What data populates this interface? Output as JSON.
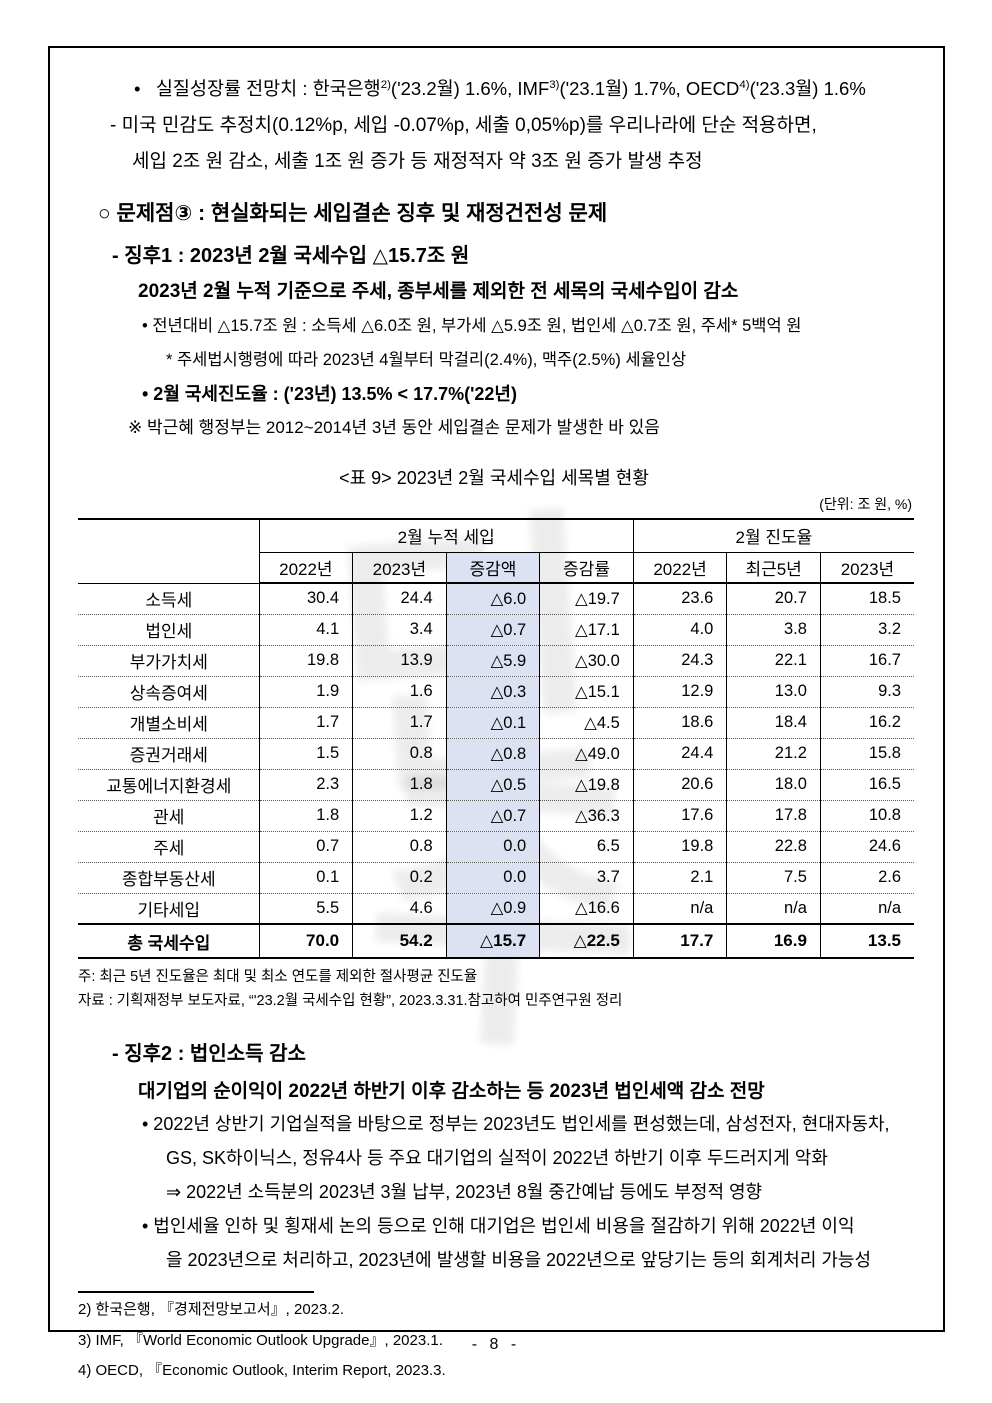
{
  "decor": {
    "watermark_glyphs": [
      "민",
      "주"
    ]
  },
  "intro": {
    "bullet1": {
      "marker": "•",
      "seg1": "실질성장률 전망치 : 한국은행",
      "sup1": "2)",
      "seg2": "('23.2월) 1.6%, IMF",
      "sup2": "3)",
      "seg3": "('23.1월) 1.7%, OECD",
      "sup3": "4)",
      "seg4": "('23.3월) 1.6%"
    },
    "dash1": "- 미국 민감도 추정치(0.12%p, 세입 -0.07%p, 세출 0,05%p)를 우리나라에 단순 적용하면,",
    "dash1_cont": "세입 2조 원 감소, 세출 1조 원 증가 등 재정적자 약 3조 원 증가 발생 추정"
  },
  "problem3": {
    "heading": "○ 문제점③ : 현실화되는 세입결손 징후 및 재정건전성 문제",
    "sign1": {
      "title": "- 징후1 : 2023년 2월 국세수입 △15.7조 원",
      "summary": "2023년 2월 누적 기준으로 주세, 종부세를 제외한 전 세목의 국세수입이 감소",
      "bullet_yoy": "• 전년대비 △15.7조 원 : 소득세 △6.0조 원, 부가세 △5.9조 원, 법인세 △0.7조 원, 주세* 5백억 원",
      "liquor_note": "* 주세법시행령에 따라 2023년 4월부터 막걸리(2.4%), 맥주(2.5%) 세율인상",
      "bullet_progress": "• 2월 국세진도율 : ('23년) 13.5% < 17.7%('22년)",
      "remark": "※ 박근혜 행정부는 2012~2014년 3년 동안 세입결손 문제가 발생한 바 있음"
    },
    "sign2": {
      "title": "- 징후2 : 법인소득 감소",
      "summary": "대기업의 순이익이 2022년 하반기 이후 감소하는 등 2023년 법인세액 감소 전망",
      "bullet1_line1": "• 2022년 상반기 기업실적을 바탕으로 정부는 2023년도 법인세를 편성했는데, 삼성전자, 현대자동차,",
      "bullet1_line2": "GS, SK하이닉스, 정유4사 등 주요 대기업의 실적이 2022년 하반기 이후 두드러지게 악화",
      "bullet1_line3": "⇒ 2022년 소득분의 2023년 3월 납부, 2023년 8월 중간예납 등에도 부정적 영향",
      "bullet2_line1": "• 법인세율 인하 및 횡재세 논의 등으로 인해 대기업은 법인세 비용을 절감하기 위해 2022년 이익",
      "bullet2_line2": "을 2023년으로 처리하고, 2023년에 발생할 비용을 2022년으로 앞당기는 등의 회계처리 가능성"
    }
  },
  "table": {
    "title": "<표 9> 2023년 2월 국세수입 세목별 현황",
    "unit": "(단위: 조 원, %)",
    "group1": "2월 누적 세입",
    "group2": "2월 진도율",
    "col_headers": [
      "2022년",
      "2023년",
      "증감액",
      "증감률",
      "2022년",
      "최근5년",
      "2023년"
    ],
    "highlight_col_index": 2,
    "highlight_color": "#dce2f2",
    "rows": [
      {
        "label": "소득세",
        "values": [
          "30.4",
          "24.4",
          "△6.0",
          "△19.7",
          "23.6",
          "20.7",
          "18.5"
        ]
      },
      {
        "label": "법인세",
        "values": [
          "4.1",
          "3.4",
          "△0.7",
          "△17.1",
          "4.0",
          "3.8",
          "3.2"
        ]
      },
      {
        "label": "부가가치세",
        "values": [
          "19.8",
          "13.9",
          "△5.9",
          "△30.0",
          "24.3",
          "22.1",
          "16.7"
        ]
      },
      {
        "label": "상속증여세",
        "values": [
          "1.9",
          "1.6",
          "△0.3",
          "△15.1",
          "12.9",
          "13.0",
          "9.3"
        ]
      },
      {
        "label": "개별소비세",
        "values": [
          "1.7",
          "1.7",
          "△0.1",
          "△4.5",
          "18.6",
          "18.4",
          "16.2"
        ]
      },
      {
        "label": "증권거래세",
        "values": [
          "1.5",
          "0.8",
          "△0.8",
          "△49.0",
          "24.4",
          "21.2",
          "15.8"
        ]
      },
      {
        "label": "교통에너지환경세",
        "values": [
          "2.3",
          "1.8",
          "△0.5",
          "△19.8",
          "20.6",
          "18.0",
          "16.5"
        ]
      },
      {
        "label": "관세",
        "values": [
          "1.8",
          "1.2",
          "△0.7",
          "△36.3",
          "17.6",
          "17.8",
          "10.8"
        ]
      },
      {
        "label": "주세",
        "values": [
          "0.7",
          "0.8",
          "0.0",
          "6.5",
          "19.8",
          "22.8",
          "24.6"
        ]
      },
      {
        "label": "종합부동산세",
        "values": [
          "0.1",
          "0.2",
          "0.0",
          "3.7",
          "2.1",
          "7.5",
          "2.6"
        ]
      },
      {
        "label": "기타세입",
        "values": [
          "5.5",
          "4.6",
          "△0.9",
          "△16.6",
          "n/a",
          "n/a",
          "n/a"
        ]
      }
    ],
    "total": {
      "label": "총 국세수입",
      "values": [
        "70.0",
        "54.2",
        "△15.7",
        "△22.5",
        "17.7",
        "16.9",
        "13.5"
      ]
    },
    "note_line1": "주: 최근 5년 진도율은 최대 및 최소 연도를 제외한 절사평균 진도율",
    "note_line2": "자료 : 기획재정부 보도자료, “'23.2월 국세수입 현황”, 2023.3.31.참고하여 민주연구원 정리"
  },
  "footnotes": [
    "2) 한국은행, 『경제전망보고서』, 2023.2.",
    "3) IMF, 『World Economic Outlook Upgrade』, 2023.1.",
    "4) OECD, 『Economic Outlook, Interim Report, 2023.3."
  ],
  "page_number": "- 8 -"
}
